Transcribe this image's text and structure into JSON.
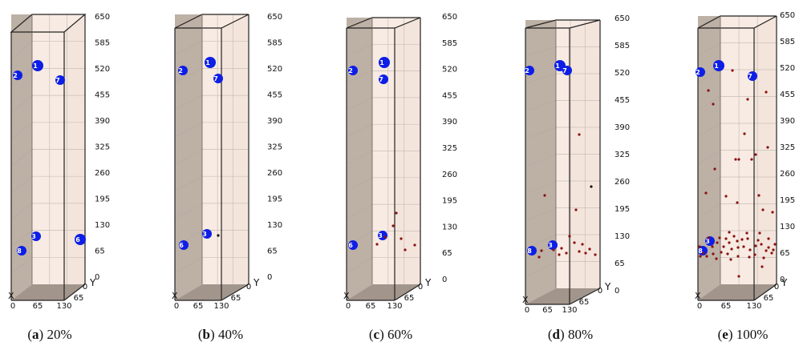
{
  "panels": [
    {
      "label": "a",
      "progress": "20%",
      "axis_numbers": [
        "130",
        "65",
        "0",
        "65",
        "0"
      ],
      "sensor_numbers": [
        "2",
        "1",
        "7",
        "3",
        "8",
        "6"
      ]
    },
    {
      "label": "b",
      "progress": "40%",
      "axis_numbers": [
        "130",
        "65",
        "0",
        "65",
        "0"
      ],
      "sensor_numbers": [
        "2",
        "1",
        "7",
        "3",
        "6"
      ]
    },
    {
      "label": "c",
      "progress": "60%",
      "axis_numbers": [
        "130",
        "65",
        "0",
        "65",
        "0"
      ],
      "sensor_numbers": [
        "2",
        "1",
        "7",
        "3",
        "6"
      ]
    },
    {
      "label": "d",
      "progress": "80%",
      "axis_numbers": [
        "130",
        "65",
        "0",
        "65",
        "0"
      ],
      "sensor_numbers": [
        "2",
        "1",
        "7",
        "3",
        "8"
      ]
    },
    {
      "label": "e",
      "progress": "100%",
      "axis_numbers": [
        "130",
        "65",
        "0",
        "65",
        "0"
      ],
      "sensor_numbers": [
        "2",
        "1",
        "7",
        "3",
        "8"
      ]
    }
  ],
  "z_ticks": [
    "650",
    "585",
    "520",
    "455",
    "390",
    "325",
    "260",
    "195",
    "130",
    "65",
    "0"
  ],
  "axis_letters": {
    "x": "X",
    "y": "Y"
  },
  "colors": {
    "sensor": "#0d1ee6",
    "event": "#8b1010",
    "box_dark": "#a89a8e",
    "box_light": "#f8ebe3",
    "edge": "#222222"
  },
  "event_counts": [
    0,
    1,
    7,
    17,
    60
  ]
}
